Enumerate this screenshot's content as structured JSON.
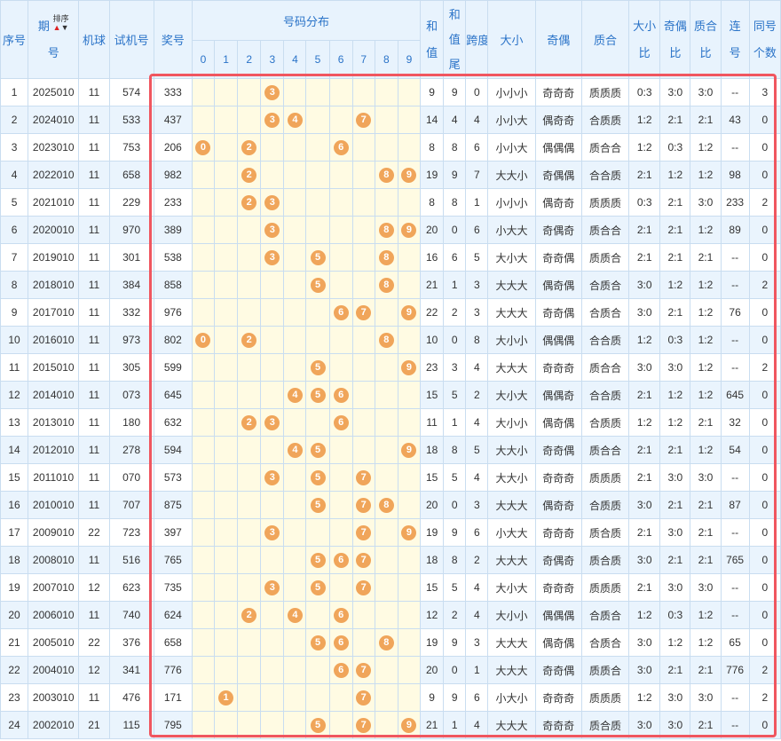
{
  "headers": {
    "seq": "序号",
    "period_top": "期",
    "period_bottom": "号",
    "sort": "排序",
    "machine": "机球",
    "trial": "试机号",
    "prize": "奖号",
    "dist": "号码分布",
    "digits": [
      "0",
      "1",
      "2",
      "3",
      "4",
      "5",
      "6",
      "7",
      "8",
      "9"
    ],
    "sum_top": "和",
    "sum_bottom": "值",
    "sumtail_top": "和",
    "sumtail_mid": "值",
    "sumtail_bottom": "尾",
    "span": "跨度",
    "bigsmall": "大小",
    "oddeven": "奇偶",
    "primecomp": "质合",
    "bsratio_top": "大小",
    "bsratio_bottom": "比",
    "oeratio_top": "奇偶",
    "oeratio_bottom": "比",
    "pcratio_top": "质合",
    "pcratio_bottom": "比",
    "consec_top": "连",
    "consec_bottom": "号",
    "same_top": "同号",
    "same_bottom": "个数"
  },
  "icons": {
    "sort_up": "red-up-arrow",
    "sort_down": "black-down-arrow"
  },
  "colors": {
    "header_bg": "#e8f3fd",
    "header_text": "#2a73c8",
    "ball": "#f0a55a",
    "dist_bg": "#fffbe3",
    "highlight": "#f0565f"
  },
  "rows": [
    {
      "seq": "1",
      "period": "2025010",
      "machine": "11",
      "trial": "574",
      "prize": "333",
      "d": [
        "",
        "",
        "",
        "3",
        "",
        "",
        "",
        "",
        "",
        ""
      ],
      "sum": "9",
      "tail": "9",
      "span": "0",
      "bs": "小小小",
      "oe": "奇奇奇",
      "pc": "质质质",
      "bsr": "0:3",
      "oer": "3:0",
      "pcr": "3:0",
      "consec": "--",
      "same": "3"
    },
    {
      "seq": "2",
      "period": "2024010",
      "machine": "11",
      "trial": "533",
      "prize": "437",
      "d": [
        "",
        "",
        "",
        "3",
        "4",
        "",
        "",
        "7",
        "",
        ""
      ],
      "sum": "14",
      "tail": "4",
      "span": "4",
      "bs": "小小大",
      "oe": "偶奇奇",
      "pc": "合质质",
      "bsr": "1:2",
      "oer": "2:1",
      "pcr": "2:1",
      "consec": "43",
      "same": "0"
    },
    {
      "seq": "3",
      "period": "2023010",
      "machine": "11",
      "trial": "753",
      "prize": "206",
      "d": [
        "0",
        "",
        "2",
        "",
        "",
        "",
        "6",
        "",
        "",
        ""
      ],
      "sum": "8",
      "tail": "8",
      "span": "6",
      "bs": "小小大",
      "oe": "偶偶偶",
      "pc": "质合合",
      "bsr": "1:2",
      "oer": "0:3",
      "pcr": "1:2",
      "consec": "--",
      "same": "0"
    },
    {
      "seq": "4",
      "period": "2022010",
      "machine": "11",
      "trial": "658",
      "prize": "982",
      "d": [
        "",
        "",
        "2",
        "",
        "",
        "",
        "",
        "",
        "8",
        "9"
      ],
      "sum": "19",
      "tail": "9",
      "span": "7",
      "bs": "大大小",
      "oe": "奇偶偶",
      "pc": "合合质",
      "bsr": "2:1",
      "oer": "1:2",
      "pcr": "1:2",
      "consec": "98",
      "same": "0"
    },
    {
      "seq": "5",
      "period": "2021010",
      "machine": "11",
      "trial": "229",
      "prize": "233",
      "d": [
        "",
        "",
        "2",
        "3",
        "",
        "",
        "",
        "",
        "",
        ""
      ],
      "sum": "8",
      "tail": "8",
      "span": "1",
      "bs": "小小小",
      "oe": "偶奇奇",
      "pc": "质质质",
      "bsr": "0:3",
      "oer": "2:1",
      "pcr": "3:0",
      "consec": "233",
      "same": "2"
    },
    {
      "seq": "6",
      "period": "2020010",
      "machine": "11",
      "trial": "970",
      "prize": "389",
      "d": [
        "",
        "",
        "",
        "3",
        "",
        "",
        "",
        "",
        "8",
        "9"
      ],
      "sum": "20",
      "tail": "0",
      "span": "6",
      "bs": "小大大",
      "oe": "奇偶奇",
      "pc": "质合合",
      "bsr": "2:1",
      "oer": "2:1",
      "pcr": "1:2",
      "consec": "89",
      "same": "0"
    },
    {
      "seq": "7",
      "period": "2019010",
      "machine": "11",
      "trial": "301",
      "prize": "538",
      "d": [
        "",
        "",
        "",
        "3",
        "",
        "5",
        "",
        "",
        "8",
        ""
      ],
      "sum": "16",
      "tail": "6",
      "span": "5",
      "bs": "大小大",
      "oe": "奇奇偶",
      "pc": "质质合",
      "bsr": "2:1",
      "oer": "2:1",
      "pcr": "2:1",
      "consec": "--",
      "same": "0"
    },
    {
      "seq": "8",
      "period": "2018010",
      "machine": "11",
      "trial": "384",
      "prize": "858",
      "d": [
        "",
        "",
        "",
        "",
        "",
        "5",
        "",
        "",
        "8",
        ""
      ],
      "sum": "21",
      "tail": "1",
      "span": "3",
      "bs": "大大大",
      "oe": "偶奇偶",
      "pc": "合质合",
      "bsr": "3:0",
      "oer": "1:2",
      "pcr": "1:2",
      "consec": "--",
      "same": "2"
    },
    {
      "seq": "9",
      "period": "2017010",
      "machine": "11",
      "trial": "332",
      "prize": "976",
      "d": [
        "",
        "",
        "",
        "",
        "",
        "",
        "6",
        "7",
        "",
        "9"
      ],
      "sum": "22",
      "tail": "2",
      "span": "3",
      "bs": "大大大",
      "oe": "奇奇偶",
      "pc": "合质合",
      "bsr": "3:0",
      "oer": "2:1",
      "pcr": "1:2",
      "consec": "76",
      "same": "0"
    },
    {
      "seq": "10",
      "period": "2016010",
      "machine": "11",
      "trial": "973",
      "prize": "802",
      "d": [
        "0",
        "",
        "2",
        "",
        "",
        "",
        "",
        "",
        "8",
        ""
      ],
      "sum": "10",
      "tail": "0",
      "span": "8",
      "bs": "大小小",
      "oe": "偶偶偶",
      "pc": "合合质",
      "bsr": "1:2",
      "oer": "0:3",
      "pcr": "1:2",
      "consec": "--",
      "same": "0"
    },
    {
      "seq": "11",
      "period": "2015010",
      "machine": "11",
      "trial": "305",
      "prize": "599",
      "d": [
        "",
        "",
        "",
        "",
        "",
        "5",
        "",
        "",
        "",
        "9"
      ],
      "sum": "23",
      "tail": "3",
      "span": "4",
      "bs": "大大大",
      "oe": "奇奇奇",
      "pc": "质合合",
      "bsr": "3:0",
      "oer": "3:0",
      "pcr": "1:2",
      "consec": "--",
      "same": "2"
    },
    {
      "seq": "12",
      "period": "2014010",
      "machine": "11",
      "trial": "073",
      "prize": "645",
      "d": [
        "",
        "",
        "",
        "",
        "4",
        "5",
        "6",
        "",
        "",
        ""
      ],
      "sum": "15",
      "tail": "5",
      "span": "2",
      "bs": "大小大",
      "oe": "偶偶奇",
      "pc": "合合质",
      "bsr": "2:1",
      "oer": "1:2",
      "pcr": "1:2",
      "consec": "645",
      "same": "0"
    },
    {
      "seq": "13",
      "period": "2013010",
      "machine": "11",
      "trial": "180",
      "prize": "632",
      "d": [
        "",
        "",
        "2",
        "3",
        "",
        "",
        "6",
        "",
        "",
        ""
      ],
      "sum": "11",
      "tail": "1",
      "span": "4",
      "bs": "大小小",
      "oe": "偶奇偶",
      "pc": "合质质",
      "bsr": "1:2",
      "oer": "1:2",
      "pcr": "2:1",
      "consec": "32",
      "same": "0"
    },
    {
      "seq": "14",
      "period": "2012010",
      "machine": "11",
      "trial": "278",
      "prize": "594",
      "d": [
        "",
        "",
        "",
        "",
        "4",
        "5",
        "",
        "",
        "",
        "9"
      ],
      "sum": "18",
      "tail": "8",
      "span": "5",
      "bs": "大大小",
      "oe": "奇奇偶",
      "pc": "质合合",
      "bsr": "2:1",
      "oer": "2:1",
      "pcr": "1:2",
      "consec": "54",
      "same": "0"
    },
    {
      "seq": "15",
      "period": "2011010",
      "machine": "11",
      "trial": "070",
      "prize": "573",
      "d": [
        "",
        "",
        "",
        "3",
        "",
        "5",
        "",
        "7",
        "",
        ""
      ],
      "sum": "15",
      "tail": "5",
      "span": "4",
      "bs": "大大小",
      "oe": "奇奇奇",
      "pc": "质质质",
      "bsr": "2:1",
      "oer": "3:0",
      "pcr": "3:0",
      "consec": "--",
      "same": "0"
    },
    {
      "seq": "16",
      "period": "2010010",
      "machine": "11",
      "trial": "707",
      "prize": "875",
      "d": [
        "",
        "",
        "",
        "",
        "",
        "5",
        "",
        "7",
        "8",
        ""
      ],
      "sum": "20",
      "tail": "0",
      "span": "3",
      "bs": "大大大",
      "oe": "偶奇奇",
      "pc": "合质质",
      "bsr": "3:0",
      "oer": "2:1",
      "pcr": "2:1",
      "consec": "87",
      "same": "0"
    },
    {
      "seq": "17",
      "period": "2009010",
      "machine": "22",
      "trial": "723",
      "prize": "397",
      "d": [
        "",
        "",
        "",
        "3",
        "",
        "",
        "",
        "7",
        "",
        "9"
      ],
      "sum": "19",
      "tail": "9",
      "span": "6",
      "bs": "小大大",
      "oe": "奇奇奇",
      "pc": "质合质",
      "bsr": "2:1",
      "oer": "3:0",
      "pcr": "2:1",
      "consec": "--",
      "same": "0"
    },
    {
      "seq": "18",
      "period": "2008010",
      "machine": "11",
      "trial": "516",
      "prize": "765",
      "d": [
        "",
        "",
        "",
        "",
        "",
        "5",
        "6",
        "7",
        "",
        ""
      ],
      "sum": "18",
      "tail": "8",
      "span": "2",
      "bs": "大大大",
      "oe": "奇偶奇",
      "pc": "质合质",
      "bsr": "3:0",
      "oer": "2:1",
      "pcr": "2:1",
      "consec": "765",
      "same": "0"
    },
    {
      "seq": "19",
      "period": "2007010",
      "machine": "12",
      "trial": "623",
      "prize": "735",
      "d": [
        "",
        "",
        "",
        "3",
        "",
        "5",
        "",
        "7",
        "",
        ""
      ],
      "sum": "15",
      "tail": "5",
      "span": "4",
      "bs": "大小大",
      "oe": "奇奇奇",
      "pc": "质质质",
      "bsr": "2:1",
      "oer": "3:0",
      "pcr": "3:0",
      "consec": "--",
      "same": "0"
    },
    {
      "seq": "20",
      "period": "2006010",
      "machine": "11",
      "trial": "740",
      "prize": "624",
      "d": [
        "",
        "",
        "2",
        "",
        "4",
        "",
        "6",
        "",
        "",
        ""
      ],
      "sum": "12",
      "tail": "2",
      "span": "4",
      "bs": "大小小",
      "oe": "偶偶偶",
      "pc": "合质合",
      "bsr": "1:2",
      "oer": "0:3",
      "pcr": "1:2",
      "consec": "--",
      "same": "0"
    },
    {
      "seq": "21",
      "period": "2005010",
      "machine": "22",
      "trial": "376",
      "prize": "658",
      "d": [
        "",
        "",
        "",
        "",
        "",
        "5",
        "6",
        "",
        "8",
        ""
      ],
      "sum": "19",
      "tail": "9",
      "span": "3",
      "bs": "大大大",
      "oe": "偶奇偶",
      "pc": "合质合",
      "bsr": "3:0",
      "oer": "1:2",
      "pcr": "1:2",
      "consec": "65",
      "same": "0"
    },
    {
      "seq": "22",
      "period": "2004010",
      "machine": "12",
      "trial": "341",
      "prize": "776",
      "d": [
        "",
        "",
        "",
        "",
        "",
        "",
        "6",
        "7",
        "",
        ""
      ],
      "sum": "20",
      "tail": "0",
      "span": "1",
      "bs": "大大大",
      "oe": "奇奇偶",
      "pc": "质质合",
      "bsr": "3:0",
      "oer": "2:1",
      "pcr": "2:1",
      "consec": "776",
      "same": "2"
    },
    {
      "seq": "23",
      "period": "2003010",
      "machine": "11",
      "trial": "476",
      "prize": "171",
      "d": [
        "",
        "1",
        "",
        "",
        "",
        "",
        "",
        "7",
        "",
        ""
      ],
      "sum": "9",
      "tail": "9",
      "span": "6",
      "bs": "小大小",
      "oe": "奇奇奇",
      "pc": "质质质",
      "bsr": "1:2",
      "oer": "3:0",
      "pcr": "3:0",
      "consec": "--",
      "same": "2"
    },
    {
      "seq": "24",
      "period": "2002010",
      "machine": "21",
      "trial": "115",
      "prize": "795",
      "d": [
        "",
        "",
        "",
        "",
        "",
        "5",
        "",
        "7",
        "",
        "9"
      ],
      "sum": "21",
      "tail": "1",
      "span": "4",
      "bs": "大大大",
      "oe": "奇奇奇",
      "pc": "质合质",
      "bsr": "3:0",
      "oer": "3:0",
      "pcr": "2:1",
      "consec": "--",
      "same": "0"
    }
  ]
}
